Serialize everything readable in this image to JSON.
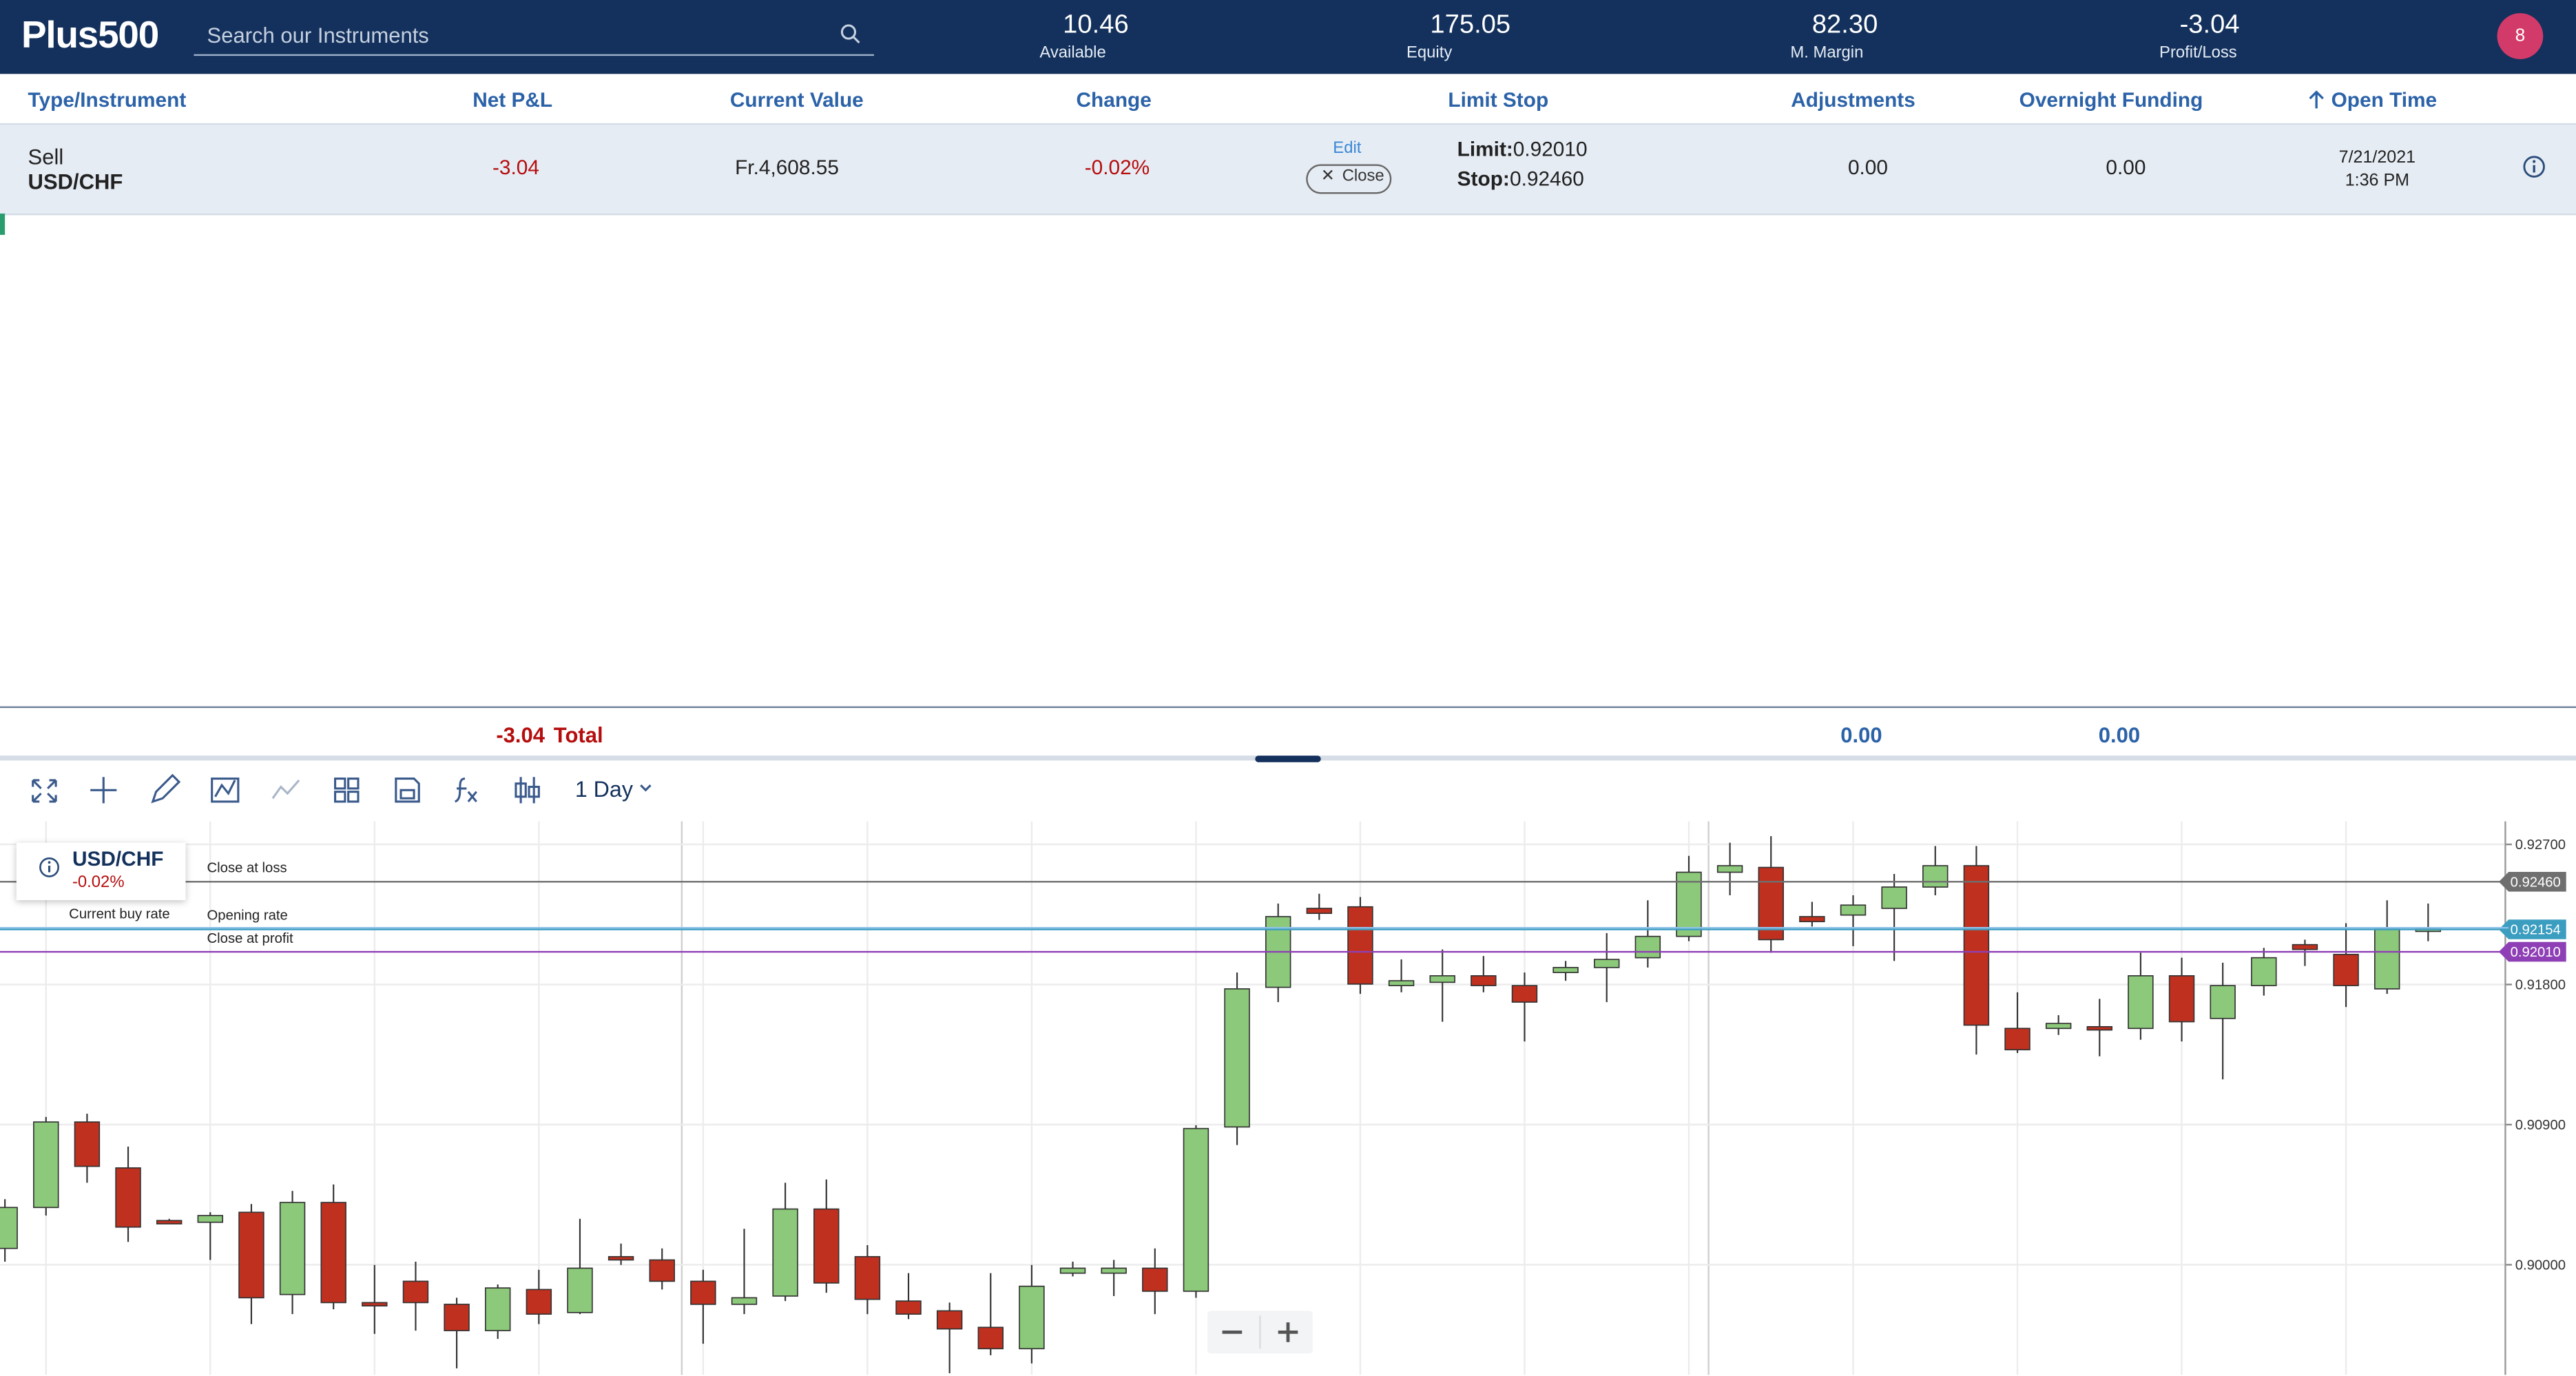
{
  "header": {
    "logo": "Plus500",
    "search_placeholder": "Search our Instruments",
    "stats": [
      {
        "value": "10.46",
        "label": "Available"
      },
      {
        "value": "175.05",
        "label": "Equity"
      },
      {
        "value": "82.30",
        "label": "M. Margin"
      },
      {
        "value": "-3.04",
        "label": "Profit/Loss"
      }
    ],
    "notifications": "8"
  },
  "table": {
    "columns": [
      "Type/Instrument",
      "Net P&L",
      "Current Value",
      "Change",
      "Limit Stop",
      "Adjustments",
      "Overnight Funding",
      "Open Time"
    ],
    "rows": [
      {
        "type": "Sell",
        "instrument": "USD/CHF",
        "net_pl": "-3.04",
        "current_value": "Fr.4,608.55",
        "change": "-0.02%",
        "edit": "Edit",
        "close": "Close",
        "limit_label": "Limit:",
        "limit": "0.92010",
        "stop_label": "Stop:",
        "stop": "0.92460",
        "adjustments": "0.00",
        "overnight_funding": "0.00",
        "open_date": "7/21/2021",
        "open_time": "1:36 PM"
      }
    ]
  },
  "totals": {
    "net_pl": "-3.04",
    "label": "Total",
    "adjustments": "0.00",
    "overnight_funding": "0.00"
  },
  "toolbar": {
    "interval": "1 Day"
  },
  "chart_data": {
    "type": "candlestick",
    "instrument": "USD/CHF",
    "change": "-0.02%",
    "open": [
      0.90105,
      0.90368,
      0.90917,
      0.90622,
      0.90284,
      0.90273,
      0.90337,
      0.89809,
      0.904,
      0.89757,
      0.89894,
      0.89746,
      0.89577,
      0.89841,
      0.89693,
      0.90052,
      0.90031,
      0.89894,
      0.89746,
      0.89799,
      0.90358,
      0.90052,
      0.89767,
      0.89704,
      0.89598,
      0.89461,
      0.89946,
      0.89946,
      0.89978,
      0.8983,
      0.90885,
      0.91782,
      0.92289,
      0.92299,
      0.91793,
      0.91814,
      0.91856,
      0.91793,
      0.91877,
      0.91909,
      0.91972,
      0.92109,
      0.92521,
      0.92552,
      0.92236,
      0.92246,
      0.92289,
      0.92426,
      0.92563,
      0.91518,
      0.91518,
      0.91529,
      0.91518,
      0.91856,
      0.91582,
      0.91793,
      0.92056,
      0.91993,
      0.91772,
      0.92162
    ],
    "high": [
      0.90421,
      0.90949,
      0.9097,
      0.90759,
      0.90295,
      0.90337,
      0.9039,
      0.90474,
      0.90516,
      0.89999,
      0.9002,
      0.89788,
      0.89873,
      0.89968,
      0.90295,
      0.90136,
      0.90105,
      0.89968,
      0.90231,
      0.90527,
      0.90548,
      0.90126,
      0.89946,
      0.89757,
      0.89946,
      0.89999,
      0.9002,
      0.90031,
      0.90105,
      0.90896,
      0.91877,
      0.9232,
      0.92383,
      0.92362,
      0.91961,
      0.92025,
      0.91983,
      0.91877,
      0.91951,
      0.9213,
      0.92341,
      0.92626,
      0.92711,
      0.92753,
      0.92331,
      0.92373,
      0.9251,
      0.92689,
      0.92689,
      0.9175,
      0.91603,
      0.91708,
      0.92004,
      0.91972,
      0.9194,
      0.92035,
      0.92088,
      0.92194,
      0.92341,
      0.9232
    ],
    "low": [
      0.9002,
      0.90316,
      0.90527,
      0.90147,
      0.90263,
      0.90031,
      0.89619,
      0.89683,
      0.89714,
      0.89556,
      0.89577,
      0.89335,
      0.89524,
      0.89619,
      0.89683,
      0.89999,
      0.89841,
      0.89493,
      0.89683,
      0.89767,
      0.8982,
      0.89683,
      0.89651,
      0.89303,
      0.89419,
      0.89366,
      0.89925,
      0.89799,
      0.89683,
      0.89788,
      0.90769,
      0.91687,
      0.92215,
      0.9174,
      0.9175,
      0.91561,
      0.9175,
      0.91434,
      0.91824,
      0.91687,
      0.91909,
      0.92078,
      0.92373,
      0.92004,
      0.92172,
      0.92046,
      0.91951,
      0.92373,
      0.9135,
      0.9136,
      0.91476,
      0.91339,
      0.91445,
      0.91434,
      0.91191,
      0.91729,
      0.91919,
      0.91655,
      0.9174,
      0.92078
    ],
    "close": [
      0.90368,
      0.90917,
      0.90632,
      0.90242,
      0.90263,
      0.90316,
      0.89788,
      0.904,
      0.89757,
      0.89746,
      0.89757,
      0.89577,
      0.89851,
      0.89683,
      0.89978,
      0.90031,
      0.89894,
      0.89746,
      0.89788,
      0.90358,
      0.89883,
      0.89778,
      0.89683,
      0.89588,
      0.89461,
      0.89862,
      0.89978,
      0.89978,
      0.8983,
      0.90875,
      0.91772,
      0.92236,
      0.92257,
      0.91803,
      0.91824,
      0.91856,
      0.91793,
      0.91687,
      0.91909,
      0.91961,
      0.92109,
      0.92521,
      0.92563,
      0.92088,
      0.92204,
      0.9231,
      0.92426,
      0.92563,
      0.91539,
      0.91381,
      0.9155,
      0.91508,
      0.91856,
      0.91561,
      0.91793,
      0.91972,
      0.92025,
      0.91793,
      0.92162,
      0.92162
    ],
    "up_color": "#8cc97a",
    "down_color": "#c0301f",
    "ylim": [
      0.89282,
      0.92848
    ],
    "yticks": [
      {
        "value": 0.927,
        "label": "0.92700"
      },
      {
        "value": 0.918,
        "label": "0.91800"
      },
      {
        "value": 0.909,
        "label": "0.90900"
      },
      {
        "value": 0.9,
        "label": "0.90000"
      }
    ],
    "grid": true,
    "levels": [
      {
        "name": "Close at loss",
        "value": 0.9246,
        "label": "0.92460",
        "color": "#6f6f6f"
      },
      {
        "name": "Current buy rate",
        "value": 0.92154,
        "label": "0.92154",
        "color": "#3b9dbf"
      },
      {
        "name": "Opening rate",
        "value": 0.92164,
        "color": "#8fc3ea"
      },
      {
        "name": "Close at profit",
        "value": 0.9201,
        "label": "0.92010",
        "color": "#8e3fb5"
      }
    ]
  }
}
